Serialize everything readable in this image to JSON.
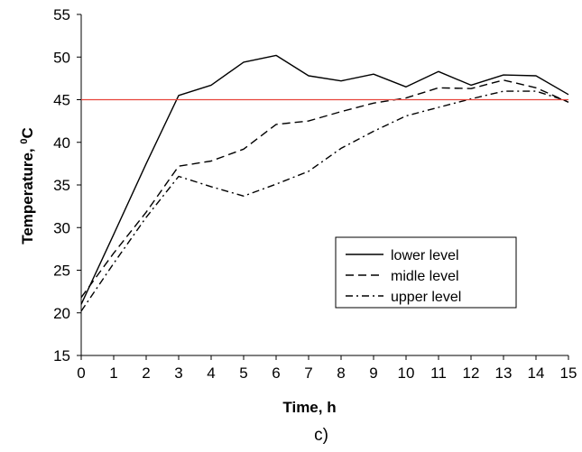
{
  "chart_data": {
    "type": "line",
    "xlabel": "Time, h",
    "ylabel_main": "Temperature, ",
    "ylabel_sup": "0",
    "ylabel_unit": "C",
    "caption": "c)",
    "xlim": [
      0,
      15
    ],
    "ylim": [
      15,
      55
    ],
    "x_ticks": [
      0,
      1,
      2,
      3,
      4,
      5,
      6,
      7,
      8,
      9,
      10,
      11,
      12,
      13,
      14,
      15
    ],
    "y_ticks": [
      15,
      20,
      25,
      30,
      35,
      40,
      45,
      50,
      55
    ],
    "grid": false,
    "legend_position": "lower-right",
    "x": [
      0,
      1,
      2,
      3,
      4,
      5,
      6,
      7,
      8,
      9,
      10,
      11,
      12,
      13,
      14,
      15
    ],
    "series": [
      {
        "name": "lower level",
        "dash": "solid",
        "values": [
          21.0,
          29.2,
          37.5,
          45.5,
          46.7,
          49.4,
          50.2,
          47.8,
          47.2,
          48.0,
          46.5,
          48.3,
          46.7,
          47.9,
          47.8,
          45.6
        ]
      },
      {
        "name": "midle level",
        "dash": "dashed",
        "values": [
          21.8,
          27.0,
          31.8,
          37.2,
          37.8,
          39.2,
          42.1,
          42.5,
          43.6,
          44.6,
          45.2,
          46.4,
          46.3,
          47.3,
          46.4,
          44.7
        ]
      },
      {
        "name": "upper level",
        "dash": "dashdot",
        "values": [
          20.2,
          25.8,
          31.2,
          36.0,
          34.8,
          33.7,
          35.1,
          36.6,
          39.3,
          41.3,
          43.1,
          44.1,
          45.1,
          46.0,
          46.0,
          44.8
        ]
      }
    ],
    "reference_line": {
      "y": 45,
      "color": "#e8433a"
    },
    "colors": {
      "axis": "#000000",
      "series": "#000000"
    }
  }
}
